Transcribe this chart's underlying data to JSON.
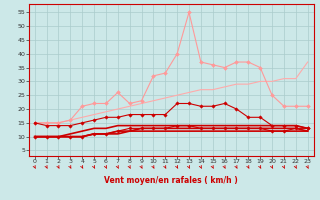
{
  "background_color": "#cce8e8",
  "grid_color": "#aacccc",
  "xlabel": "Vent moyen/en rafales ( km/h )",
  "xlabel_color": "#cc0000",
  "ylabel_color": "#333333",
  "yticks": [
    5,
    10,
    15,
    20,
    25,
    30,
    35,
    40,
    45,
    50,
    55
  ],
  "xticks": [
    0,
    1,
    2,
    3,
    4,
    5,
    6,
    7,
    8,
    9,
    10,
    11,
    12,
    13,
    14,
    15,
    16,
    17,
    18,
    19,
    20,
    21,
    22,
    23
  ],
  "xlim": [
    -0.5,
    23.5
  ],
  "ylim": [
    3,
    58
  ],
  "series": [
    {
      "color": "#ff9999",
      "linewidth": 0.8,
      "marker": "D",
      "markersize": 2.0,
      "y": [
        15,
        15,
        15,
        16,
        21,
        22,
        22,
        26,
        22,
        23,
        32,
        33,
        40,
        55,
        37,
        36,
        35,
        37,
        37,
        35,
        25,
        21,
        21,
        21
      ]
    },
    {
      "color": "#ffaaaa",
      "linewidth": 0.8,
      "marker": null,
      "markersize": 0,
      "y": [
        15,
        15,
        15,
        16,
        17,
        18,
        19,
        20,
        21,
        22,
        23,
        24,
        25,
        26,
        27,
        27,
        28,
        29,
        29,
        30,
        30,
        31,
        31,
        37
      ]
    },
    {
      "color": "#cc0000",
      "linewidth": 0.8,
      "marker": "D",
      "markersize": 1.8,
      "y": [
        15,
        14,
        14,
        14,
        15,
        16,
        17,
        17,
        18,
        18,
        18,
        18,
        22,
        22,
        21,
        21,
        22,
        20,
        17,
        17,
        14,
        14,
        14,
        13
      ]
    },
    {
      "color": "#cc0000",
      "linewidth": 0.8,
      "marker": "D",
      "markersize": 1.8,
      "y": [
        10,
        10,
        10,
        10,
        10,
        11,
        11,
        12,
        13,
        13,
        13,
        13,
        14,
        14,
        13,
        13,
        13,
        13,
        13,
        13,
        12,
        12,
        13,
        13
      ]
    },
    {
      "color": "#cc0000",
      "linewidth": 1.2,
      "marker": null,
      "markersize": 0,
      "y": [
        10,
        10,
        10,
        11,
        12,
        13,
        13,
        14,
        14,
        14,
        14,
        14,
        14,
        14,
        14,
        14,
        14,
        14,
        14,
        14,
        14,
        14,
        14,
        13
      ]
    },
    {
      "color": "#cc0000",
      "linewidth": 1.2,
      "marker": null,
      "markersize": 0,
      "y": [
        10,
        10,
        10,
        10,
        10,
        11,
        11,
        12,
        12,
        13,
        13,
        13,
        13,
        13,
        13,
        13,
        13,
        13,
        13,
        13,
        13,
        13,
        13,
        12
      ]
    },
    {
      "color": "#cc0000",
      "linewidth": 1.2,
      "marker": null,
      "markersize": 0,
      "y": [
        10,
        10,
        10,
        10,
        10,
        11,
        11,
        11,
        12,
        12,
        12,
        12,
        12,
        12,
        12,
        12,
        12,
        12,
        12,
        12,
        12,
        12,
        12,
        12
      ]
    }
  ],
  "arrow_color": "#cc0000"
}
